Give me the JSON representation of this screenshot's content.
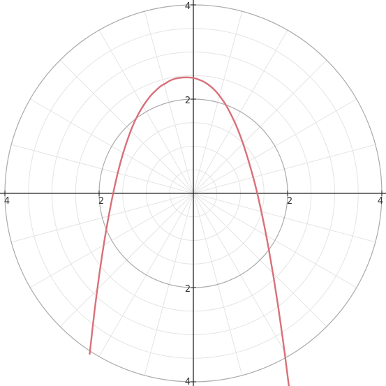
{
  "chart_data": {
    "type": "line",
    "coordinate_system": "polar-grid",
    "title": "",
    "xlabel": "",
    "ylabel": "",
    "xlim": [
      -4,
      4
    ],
    "ylim": [
      -4,
      4
    ],
    "grid": true,
    "major_circle_radii": [
      2,
      4
    ],
    "minor_circle_step": 0.5,
    "angular_step_degrees": 15,
    "tick_labels": {
      "x_left_outer": "4",
      "x_left_inner": "2",
      "x_right_inner": "2",
      "x_right_outer": "4",
      "y_top_outer": "4",
      "y_top_inner": "2",
      "y_bottom_inner": "2",
      "y_bottom_outer": "4"
    },
    "series": [
      {
        "x": [
          -2.2,
          -2.1,
          -2.0,
          -1.9,
          -1.8,
          -1.7,
          -1.6,
          -1.5,
          -1.4,
          -1.3,
          -1.2,
          -1.1,
          -1.0,
          -0.9,
          -0.8,
          -0.7,
          -0.6,
          -0.5,
          -0.4,
          -0.3,
          -0.2,
          -0.1,
          0.0,
          0.1,
          0.2,
          0.3,
          0.4,
          0.5,
          0.6,
          0.7,
          0.8,
          0.9,
          1.0,
          1.1,
          1.2,
          1.3,
          1.4,
          1.5,
          1.6,
          1.7,
          1.8,
          1.9,
          2.0,
          2.05
        ],
        "y": [
          -3.41,
          -2.52,
          -1.75,
          -1.08,
          -0.5,
          0.01,
          0.45,
          0.82,
          1.13,
          1.4,
          1.62,
          1.8,
          1.95,
          2.08,
          2.18,
          2.27,
          2.33,
          2.39,
          2.43,
          2.45,
          2.46,
          2.46,
          2.45,
          2.42,
          2.38,
          2.32,
          2.24,
          2.14,
          2.01,
          1.86,
          1.67,
          1.46,
          1.21,
          0.92,
          0.59,
          0.23,
          -0.19,
          -0.66,
          -1.18,
          -1.76,
          -2.4,
          -3.1,
          -3.87,
          -4.27
        ],
        "color": "#d9707a"
      }
    ]
  }
}
